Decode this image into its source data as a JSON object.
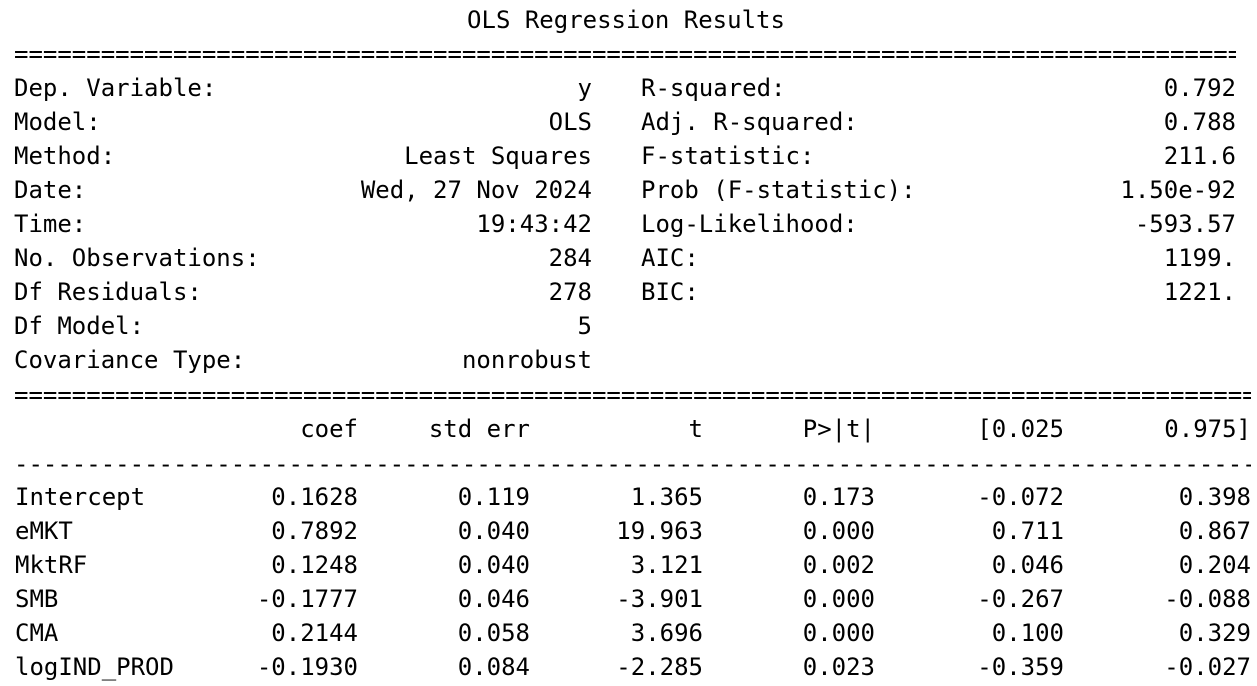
{
  "title": "OLS Regression Results",
  "rules": {
    "top": "======================================================================================",
    "mid": "================================================================================================",
    "dash": "------------------------------------------------------------------------------------------------"
  },
  "summary_left": [
    {
      "label": "Dep. Variable:",
      "value": "y"
    },
    {
      "label": "Model:",
      "value": "OLS"
    },
    {
      "label": "Method:",
      "value": "Least Squares"
    },
    {
      "label": "Date:",
      "value": "Wed, 27 Nov 2024"
    },
    {
      "label": "Time:",
      "value": "19:43:42"
    },
    {
      "label": "No. Observations:",
      "value": "284"
    },
    {
      "label": "Df Residuals:",
      "value": "278"
    },
    {
      "label": "Df Model:",
      "value": "5"
    },
    {
      "label": "Covariance Type:",
      "value": "nonrobust"
    }
  ],
  "summary_right": [
    {
      "label": "R-squared:",
      "value": "0.792"
    },
    {
      "label": "Adj. R-squared:",
      "value": "0.788"
    },
    {
      "label": "F-statistic:",
      "value": "211.6"
    },
    {
      "label": "Prob (F-statistic):",
      "value": "1.50e-92"
    },
    {
      "label": "Log-Likelihood:",
      "value": "-593.57"
    },
    {
      "label": "AIC:",
      "value": "1199."
    },
    {
      "label": "BIC:",
      "value": "1221."
    }
  ],
  "coef_table": {
    "headers": [
      "",
      "coef",
      "std err",
      "t",
      "P>|t|",
      "[0.025",
      "0.975]"
    ],
    "rows": [
      [
        "Intercept",
        "0.1628",
        "0.119",
        "1.365",
        "0.173",
        "-0.072",
        "0.398"
      ],
      [
        "eMKT",
        "0.7892",
        "0.040",
        "19.963",
        "0.000",
        "0.711",
        "0.867"
      ],
      [
        "MktRF",
        "0.1248",
        "0.040",
        "3.121",
        "0.002",
        "0.046",
        "0.204"
      ],
      [
        "SMB",
        "-0.1777",
        "0.046",
        "-3.901",
        "0.000",
        "-0.267",
        "-0.088"
      ],
      [
        "CMA",
        "0.2144",
        "0.058",
        "3.696",
        "0.000",
        "0.100",
        "0.329"
      ],
      [
        "logIND_PROD",
        "-0.1930",
        "0.084",
        "-2.285",
        "0.023",
        "-0.359",
        "-0.027"
      ]
    ]
  }
}
